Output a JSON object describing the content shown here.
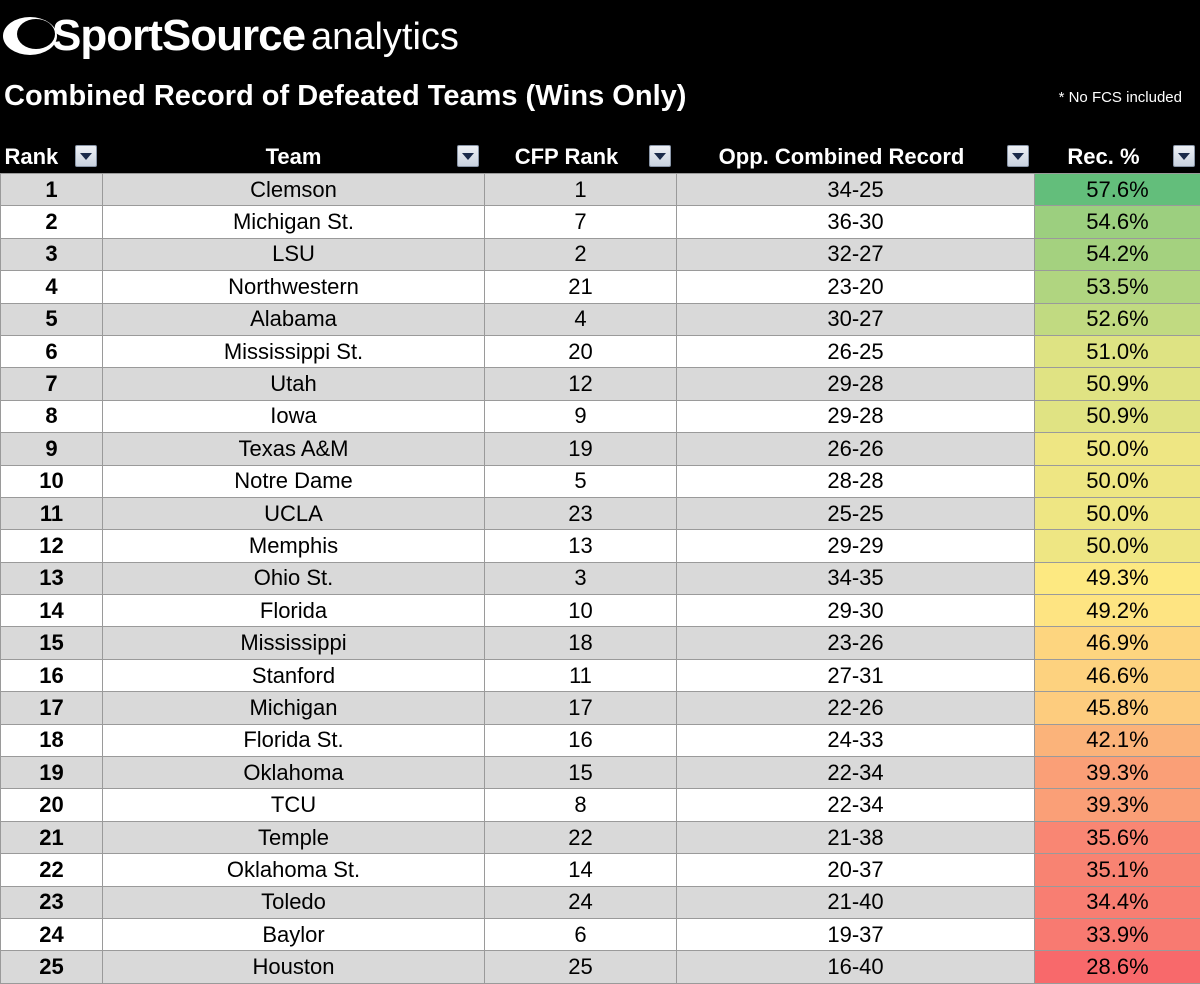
{
  "header": {
    "logo_brand": "SportSource",
    "logo_suffix": "analytics",
    "title": "Combined Record of Defeated Teams (Wins Only)",
    "note": "* No FCS included"
  },
  "columns": [
    {
      "label": "Rank"
    },
    {
      "label": "Team"
    },
    {
      "label": "CFP Rank"
    },
    {
      "label": "Opp. Combined Record"
    },
    {
      "label": "Rec. %"
    }
  ],
  "rows": [
    {
      "rank": "1",
      "team": "Clemson",
      "cfp": "1",
      "record": "34-25",
      "pct": "57.6%",
      "color": "#63be7b"
    },
    {
      "rank": "2",
      "team": "Michigan St.",
      "cfp": "7",
      "record": "36-30",
      "pct": "54.6%",
      "color": "#9ccf7f"
    },
    {
      "rank": "3",
      "team": "LSU",
      "cfp": "2",
      "record": "32-27",
      "pct": "54.2%",
      "color": "#a4d17f"
    },
    {
      "rank": "4",
      "team": "Northwestern",
      "cfp": "21",
      "record": "23-20",
      "pct": "53.5%",
      "color": "#b0d580"
    },
    {
      "rank": "5",
      "team": "Alabama",
      "cfp": "4",
      "record": "30-27",
      "pct": "52.6%",
      "color": "#c1da81"
    },
    {
      "rank": "6",
      "team": "Mississippi St.",
      "cfp": "20",
      "record": "26-25",
      "pct": "51.0%",
      "color": "#dee383"
    },
    {
      "rank": "7",
      "team": "Utah",
      "cfp": "12",
      "record": "29-28",
      "pct": "50.9%",
      "color": "#e0e383"
    },
    {
      "rank": "8",
      "team": "Iowa",
      "cfp": "9",
      "record": "29-28",
      "pct": "50.9%",
      "color": "#e0e383"
    },
    {
      "rank": "9",
      "team": "Texas A&M",
      "cfp": "19",
      "record": "26-26",
      "pct": "50.0%",
      "color": "#eee683"
    },
    {
      "rank": "10",
      "team": "Notre Dame",
      "cfp": "5",
      "record": "28-28",
      "pct": "50.0%",
      "color": "#eee683"
    },
    {
      "rank": "11",
      "team": "UCLA",
      "cfp": "23",
      "record": "25-25",
      "pct": "50.0%",
      "color": "#eee683"
    },
    {
      "rank": "12",
      "team": "Memphis",
      "cfp": "13",
      "record": "29-29",
      "pct": "50.0%",
      "color": "#eee683"
    },
    {
      "rank": "13",
      "team": "Ohio St.",
      "cfp": "3",
      "record": "34-35",
      "pct": "49.3%",
      "color": "#fde981"
    },
    {
      "rank": "14",
      "team": "Florida",
      "cfp": "10",
      "record": "29-30",
      "pct": "49.2%",
      "color": "#fee482"
    },
    {
      "rank": "15",
      "team": "Mississippi",
      "cfp": "18",
      "record": "23-26",
      "pct": "46.9%",
      "color": "#fdd57f"
    },
    {
      "rank": "16",
      "team": "Stanford",
      "cfp": "11",
      "record": "27-31",
      "pct": "46.6%",
      "color": "#fdd27f"
    },
    {
      "rank": "17",
      "team": "Michigan",
      "cfp": "17",
      "record": "22-26",
      "pct": "45.8%",
      "color": "#fdcc7e"
    },
    {
      "rank": "18",
      "team": "Florida St.",
      "cfp": "16",
      "record": "24-33",
      "pct": "42.1%",
      "color": "#fbb37a"
    },
    {
      "rank": "19",
      "team": "Oklahoma",
      "cfp": "15",
      "record": "22-34",
      "pct": "39.3%",
      "color": "#fa9f77"
    },
    {
      "rank": "20",
      "team": "TCU",
      "cfp": "8",
      "record": "22-34",
      "pct": "39.3%",
      "color": "#fa9f77"
    },
    {
      "rank": "21",
      "team": "Temple",
      "cfp": "22",
      "record": "21-38",
      "pct": "35.6%",
      "color": "#f98673"
    },
    {
      "rank": "22",
      "team": "Oklahoma St.",
      "cfp": "14",
      "record": "20-37",
      "pct": "35.1%",
      "color": "#f88372"
    },
    {
      "rank": "23",
      "team": "Toledo",
      "cfp": "24",
      "record": "21-40",
      "pct": "34.4%",
      "color": "#f87e72"
    },
    {
      "rank": "24",
      "team": "Baylor",
      "cfp": "6",
      "record": "19-37",
      "pct": "33.9%",
      "color": "#f87a71"
    },
    {
      "rank": "25",
      "team": "Houston",
      "cfp": "25",
      "record": "16-40",
      "pct": "28.6%",
      "color": "#f8696b"
    }
  ]
}
